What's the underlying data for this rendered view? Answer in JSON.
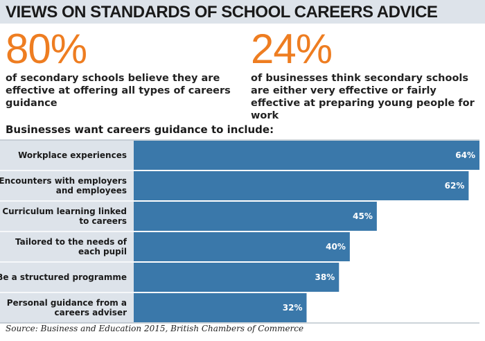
{
  "title": "VIEWS ON STANDARDS OF SCHOOL CAREERS ADVICE",
  "stats": [
    {
      "value": "80%",
      "text": "of secondary schools believe they are effective at offering all types of careers guidance"
    },
    {
      "value": "24%",
      "text": "of businesses think secondary schools are either very effective or fairly effective at preparing young people for work"
    }
  ],
  "colors": {
    "accent": "#ee7d21",
    "bar": "#3a78aa",
    "title_bg": "#dde3ea",
    "label_bg": "#dde3ea"
  },
  "chart_data": {
    "type": "bar",
    "orientation": "horizontal",
    "title": "Businesses want careers guidance to include:",
    "categories": [
      [
        "Workplace experiences"
      ],
      [
        "Encounters with employers",
        "and employees"
      ],
      [
        "Curriculum learning linked",
        "to careers"
      ],
      [
        "Tailored to the needs of",
        "each pupil"
      ],
      [
        "Be a structured programme"
      ],
      [
        "Personal guidance from a",
        "careers adviser"
      ]
    ],
    "values": [
      64,
      62,
      45,
      40,
      38,
      32
    ],
    "value_labels": [
      "64%",
      "62%",
      "45%",
      "40%",
      "38%",
      "32%"
    ],
    "xlim": [
      0,
      64
    ],
    "grid": false,
    "legend": "none"
  },
  "source": "Source: Business and Education 2015, British Chambers of Commerce"
}
